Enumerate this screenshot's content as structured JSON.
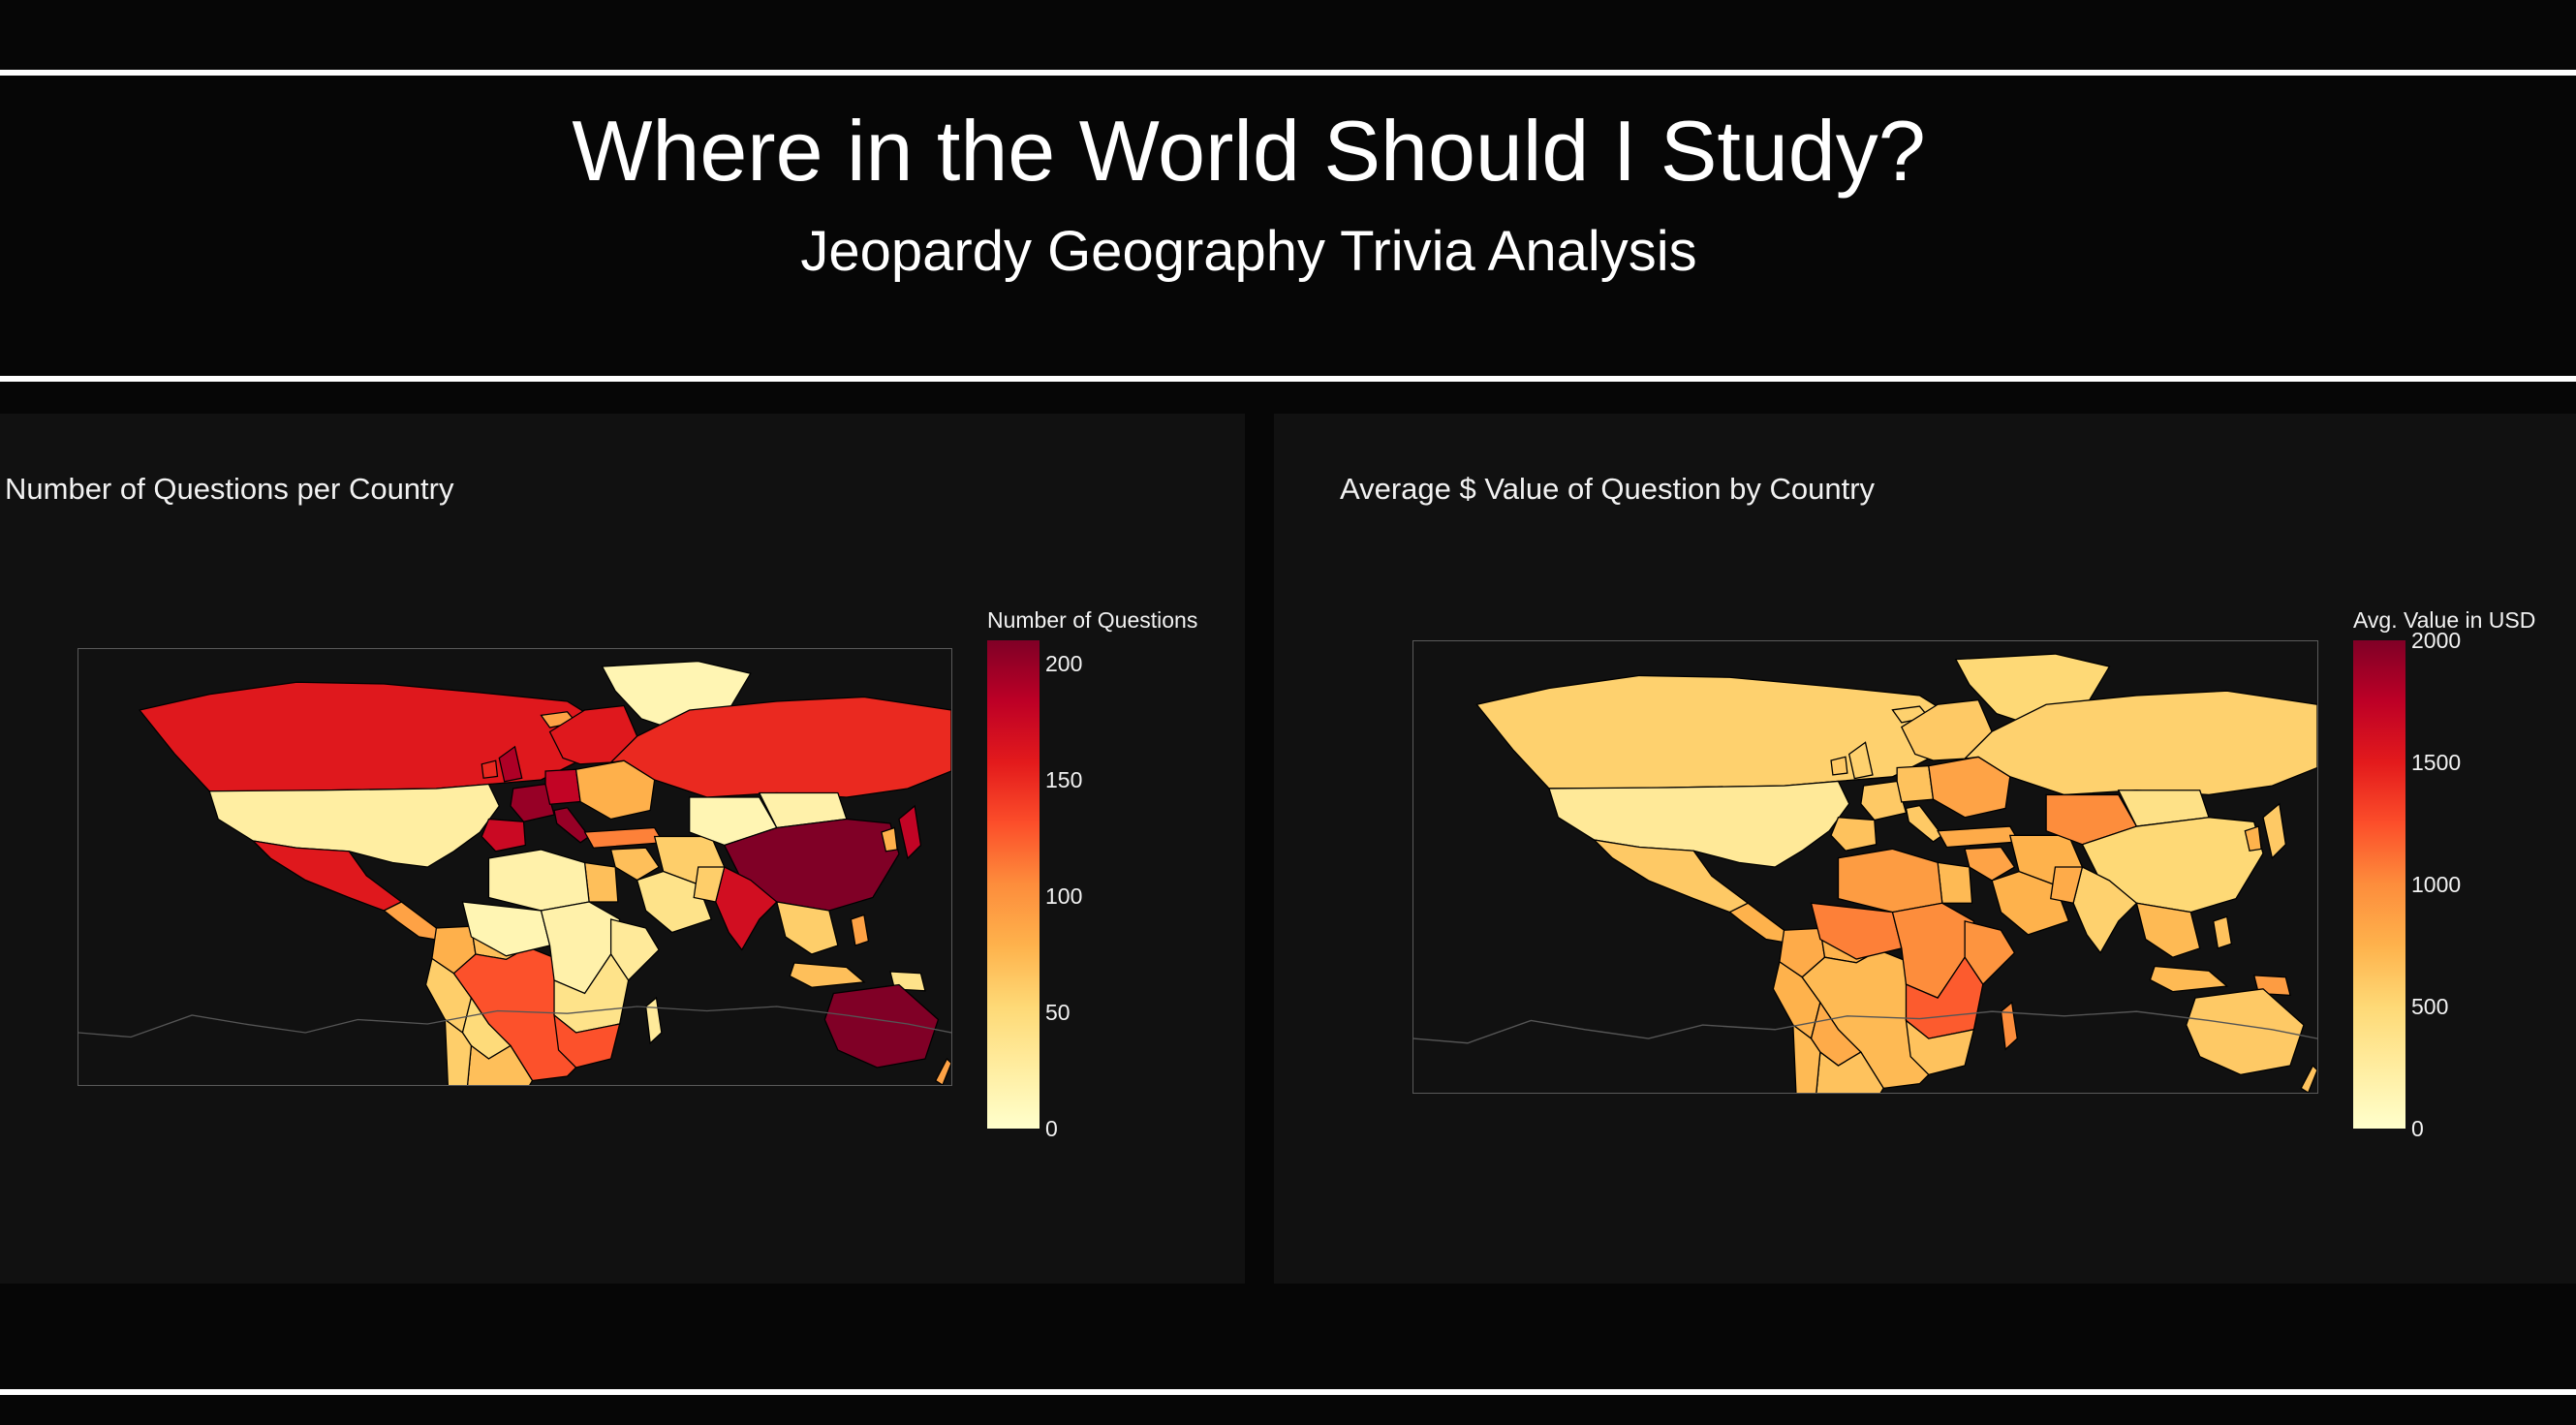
{
  "header": {
    "title": "Where in the World Should I Study?",
    "subtitle": "Jeopardy Geography Trivia Analysis"
  },
  "colorscale": [
    "#ffffcc",
    "#ffeda0",
    "#fed976",
    "#feb24c",
    "#fd8d3c",
    "#fc4e2a",
    "#e31a1c",
    "#bd0026",
    "#800026"
  ],
  "colors": {
    "page_bg": "#060606",
    "panel_bg": "#111111",
    "ocean": "#111111",
    "border": "#000000",
    "antarctica": "#555555"
  },
  "chart_data": [
    {
      "type": "choropleth",
      "title": "Number of Questions per Country",
      "colorbar_title": "Number of Questions",
      "range": [
        0,
        210
      ],
      "colorbar_ticks": [
        "0",
        "50",
        "100",
        "150",
        "200"
      ],
      "tick_values": [
        0,
        50,
        100,
        150,
        200
      ],
      "values": {
        "greenland": 15,
        "canada": 160,
        "usa": 25,
        "mexico": 160,
        "centralam": 90,
        "colombia": 80,
        "venezuela": 70,
        "peru": 60,
        "brazil": 130,
        "bolivia": 50,
        "argentina": 70,
        "chile": 60,
        "iceland": 90,
        "britain": 190,
        "ireland": 150,
        "france": 200,
        "spain": 175,
        "italy": 200,
        "germany": 180,
        "scandinavia": 160,
        "easteurope": 80,
        "russia": 150,
        "turkey": 110,
        "middleeast": 70,
        "iran": 60,
        "saudi": 40,
        "egypt": 70,
        "northafrica": 20,
        "westafrica": 15,
        "centralafrica": 20,
        "eastafrica": 30,
        "southernafrica": 40,
        "southafrica": 130,
        "madagascar": 30,
        "centralasia": 15,
        "mongolia": 20,
        "china": 210,
        "india": 170,
        "pakistan": 60,
        "seasia": 60,
        "japan": 180,
        "korea": 80,
        "indonesia": 70,
        "philippines": 90,
        "png": 40,
        "australia": 210,
        "newzealand": 90
      }
    },
    {
      "type": "choropleth",
      "title": "Average $ Value of Question by Country",
      "colorbar_title": "Avg. Value in USD",
      "range": [
        0,
        2000
      ],
      "colorbar_ticks": [
        "0",
        "500",
        "1000",
        "1500",
        "2000"
      ],
      "tick_values": [
        0,
        500,
        1000,
        1500,
        2000
      ],
      "values": {
        "greenland": 500,
        "canada": 550,
        "usa": 300,
        "mexico": 600,
        "centralam": 750,
        "colombia": 800,
        "venezuela": 750,
        "peru": 750,
        "brazil": 700,
        "bolivia": 800,
        "argentina": 650,
        "chile": 700,
        "iceland": 550,
        "britain": 550,
        "ireland": 600,
        "france": 600,
        "spain": 650,
        "italy": 600,
        "germany": 650,
        "scandinavia": 600,
        "easteurope": 850,
        "russia": 550,
        "turkey": 800,
        "middleeast": 850,
        "iran": 750,
        "saudi": 750,
        "egypt": 700,
        "northafrica": 900,
        "westafrica": 1050,
        "centralafrica": 1000,
        "eastafrica": 950,
        "southernafrica": 1200,
        "southafrica": 650,
        "madagascar": 1000,
        "centralasia": 1000,
        "mongolia": 400,
        "china": 500,
        "india": 550,
        "pakistan": 800,
        "seasia": 700,
        "japan": 600,
        "korea": 750,
        "indonesia": 700,
        "philippines": 650,
        "png": 900,
        "australia": 600,
        "newzealand": 650
      }
    }
  ]
}
